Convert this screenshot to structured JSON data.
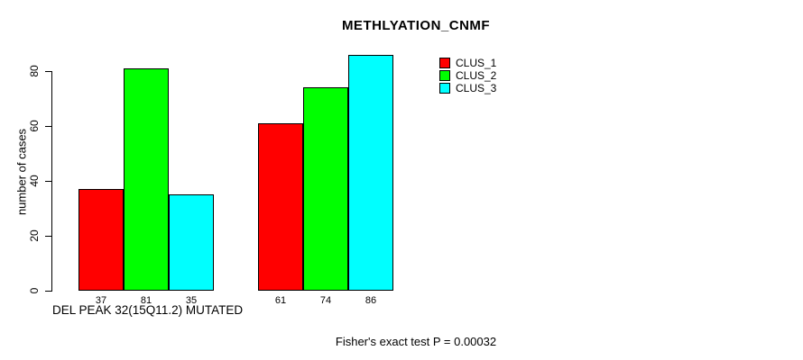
{
  "chart_data": {
    "type": "bar",
    "title": "METHLYATION_CNMF",
    "ylabel": "number of cases",
    "xlabel": "DEL PEAK 32(15Q11.2) MUTATED",
    "categories": [
      "DEL PEAK 32(15Q11.2) MUTATED",
      ""
    ],
    "series": [
      {
        "name": "CLUS_1",
        "color": "#ff0000",
        "values": [
          37,
          61
        ]
      },
      {
        "name": "CLUS_2",
        "color": "#00ff00",
        "values": [
          81,
          74
        ]
      },
      {
        "name": "CLUS_3",
        "color": "#00ffff",
        "values": [
          35,
          86
        ]
      }
    ],
    "value_labels_shown": true,
    "ylim": [
      0,
      80
    ],
    "yticks": [
      0,
      20,
      40,
      60,
      80
    ],
    "grid": false,
    "legend_position": "top-right",
    "annotation": "Fisher's exact test P = 0.00032"
  }
}
